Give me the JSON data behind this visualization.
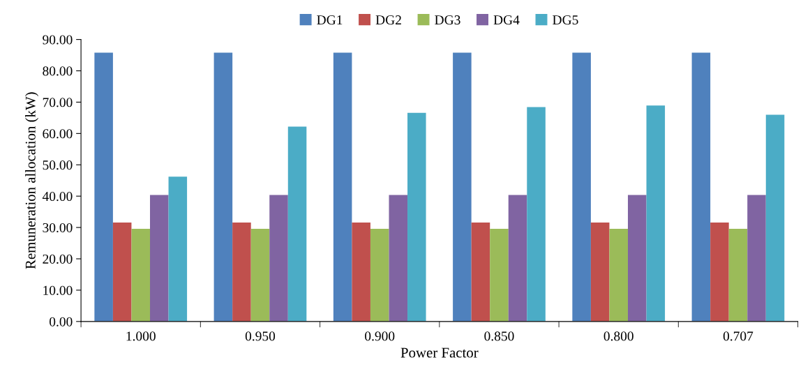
{
  "chart_data": {
    "type": "bar",
    "xlabel": "Power Factor",
    "ylabel": "Remuneration allocation (kW)",
    "categories": [
      "1.000",
      "0.950",
      "0.900",
      "0.850",
      "0.800",
      "0.707"
    ],
    "series": [
      {
        "name": "DG1",
        "color": "#4f81bd",
        "values": [
          85.8,
          85.8,
          85.8,
          85.8,
          85.8,
          85.8
        ]
      },
      {
        "name": "DG2",
        "color": "#c0504d",
        "values": [
          31.6,
          31.6,
          31.6,
          31.6,
          31.6,
          31.6
        ]
      },
      {
        "name": "DG3",
        "color": "#9bbb59",
        "values": [
          29.6,
          29.6,
          29.6,
          29.6,
          29.6,
          29.6
        ]
      },
      {
        "name": "DG4",
        "color": "#8064a2",
        "values": [
          40.4,
          40.4,
          40.4,
          40.4,
          40.4,
          40.4
        ]
      },
      {
        "name": "DG5",
        "color": "#4bacc6",
        "values": [
          46.2,
          62.2,
          66.6,
          68.4,
          68.9,
          66.0
        ]
      }
    ],
    "ylim": [
      0,
      90
    ],
    "yticks": [
      {
        "value": 0,
        "label": "0.00"
      },
      {
        "value": 10,
        "label": "10.00"
      },
      {
        "value": 20,
        "label": "20.00"
      },
      {
        "value": 30,
        "label": "30.00"
      },
      {
        "value": 40,
        "label": "40.00"
      },
      {
        "value": 50,
        "label": "50.00"
      },
      {
        "value": 60,
        "label": "60.00"
      },
      {
        "value": 70,
        "label": "70.00"
      },
      {
        "value": 80,
        "label": "80.00"
      },
      {
        "value": 90,
        "label": "90.00"
      }
    ],
    "grid": false,
    "legend": "top"
  }
}
